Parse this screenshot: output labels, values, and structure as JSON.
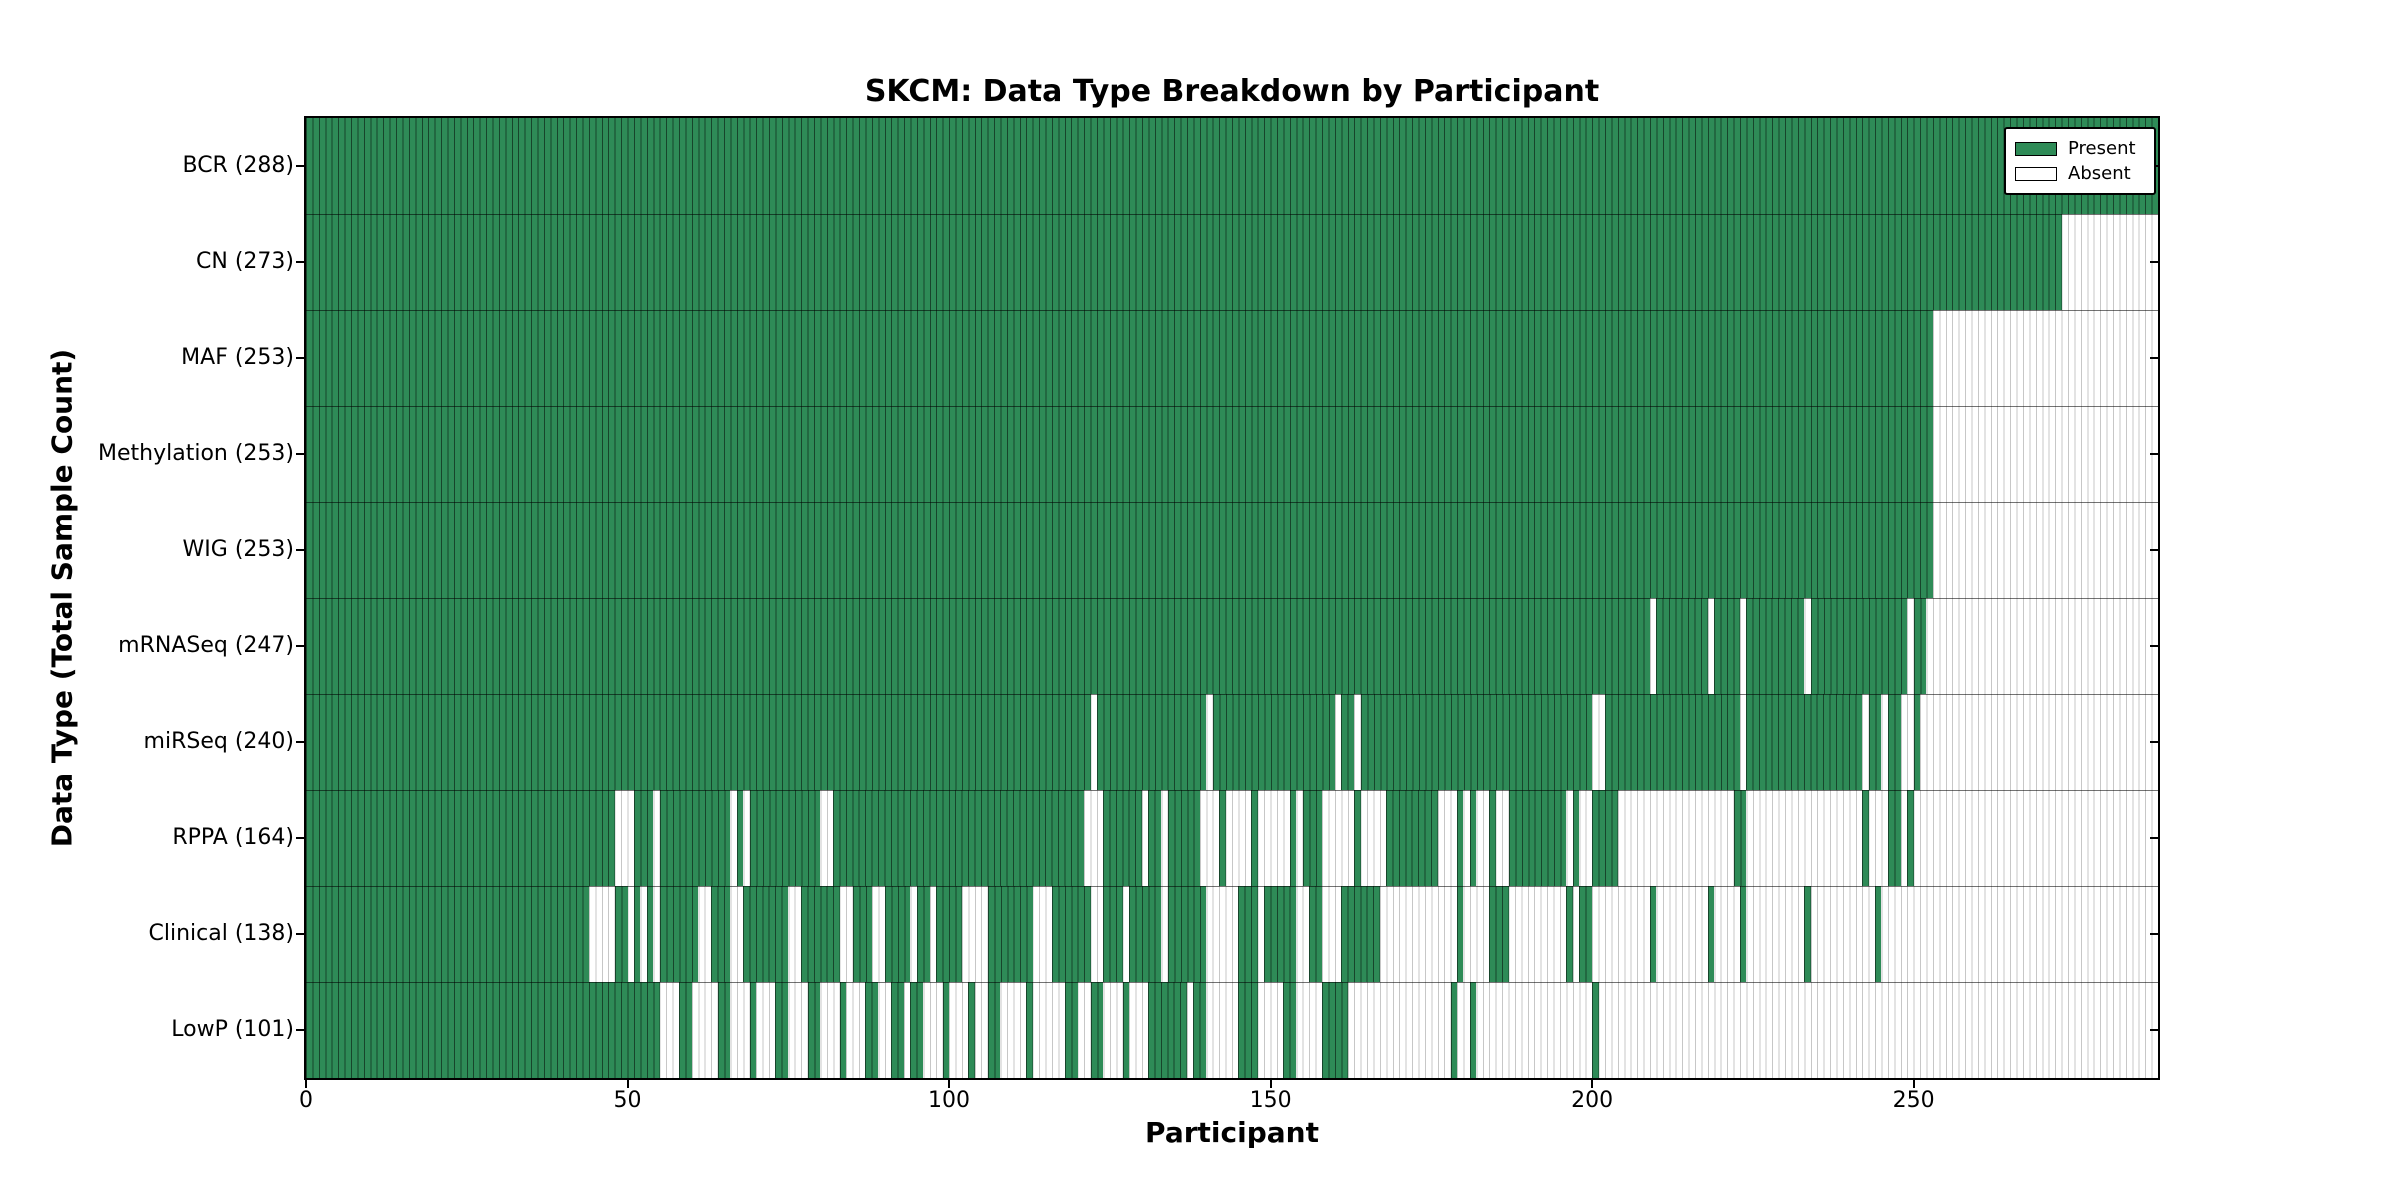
{
  "figure": {
    "background": "#FFFFFF"
  },
  "chart_data": {
    "type": "heatmap",
    "title": "SKCM: Data Type Breakdown by Participant",
    "xlabel": "Participant",
    "ylabel": "Data Type (Total Sample Count)",
    "x_ticks": [
      0,
      50,
      100,
      150,
      200,
      250
    ],
    "n_participants": 288,
    "x_range": [
      0,
      288
    ],
    "grid": true,
    "legend_position": "upper-right",
    "colors": {
      "present": "#2E8B57",
      "absent": "#FFFFFF",
      "axis": "#000000"
    },
    "legend": [
      {
        "label": "Present"
      },
      {
        "label": "Absent"
      }
    ],
    "rows": [
      {
        "label": "BCR",
        "total": 288,
        "present_ranges": [
          [
            0,
            288
          ]
        ]
      },
      {
        "label": "CN",
        "total": 273,
        "present_ranges": [
          [
            0,
            273
          ]
        ]
      },
      {
        "label": "MAF",
        "total": 253,
        "present_ranges": [
          [
            0,
            253
          ]
        ]
      },
      {
        "label": "Methylation",
        "total": 253,
        "present_ranges": [
          [
            0,
            253
          ]
        ]
      },
      {
        "label": "WIG",
        "total": 253,
        "present_ranges": [
          [
            0,
            253
          ]
        ]
      },
      {
        "label": "mRNASeq",
        "total": 247,
        "present_ranges": [
          [
            0,
            209
          ],
          [
            210,
            218
          ],
          [
            219,
            223
          ],
          [
            224,
            233
          ],
          [
            234,
            249
          ],
          [
            250,
            252
          ]
        ]
      },
      {
        "label": "miRSeq",
        "total": 240,
        "present_ranges": [
          [
            0,
            122
          ],
          [
            123,
            140
          ],
          [
            141,
            160
          ],
          [
            161,
            163
          ],
          [
            164,
            200
          ],
          [
            202,
            223
          ],
          [
            224,
            242
          ],
          [
            243,
            245
          ],
          [
            246,
            248
          ],
          [
            250,
            251
          ]
        ]
      },
      {
        "label": "RPPA",
        "total": 164,
        "present_ranges": [
          [
            0,
            48
          ],
          [
            51,
            54
          ],
          [
            55,
            66
          ],
          [
            67,
            68
          ],
          [
            69,
            80
          ],
          [
            82,
            121
          ],
          [
            124,
            130
          ],
          [
            131,
            133
          ],
          [
            134,
            139
          ],
          [
            142,
            143
          ],
          [
            147,
            148
          ],
          [
            153,
            154
          ],
          [
            155,
            158
          ],
          [
            163,
            164
          ],
          [
            168,
            176
          ],
          [
            179,
            180
          ],
          [
            181,
            182
          ],
          [
            184,
            185
          ],
          [
            187,
            196
          ],
          [
            197,
            198
          ],
          [
            200,
            204
          ],
          [
            222,
            224
          ],
          [
            242,
            243
          ],
          [
            246,
            248
          ],
          [
            249,
            250
          ]
        ]
      },
      {
        "label": "Clinical",
        "total": 138,
        "present_ranges": [
          [
            0,
            44
          ],
          [
            48,
            50
          ],
          [
            51,
            52
          ],
          [
            53,
            54
          ],
          [
            55,
            61
          ],
          [
            63,
            66
          ],
          [
            68,
            75
          ],
          [
            77,
            83
          ],
          [
            85,
            88
          ],
          [
            90,
            94
          ],
          [
            95,
            97
          ],
          [
            98,
            102
          ],
          [
            106,
            113
          ],
          [
            116,
            122
          ],
          [
            124,
            127
          ],
          [
            128,
            133
          ],
          [
            134,
            140
          ],
          [
            145,
            148
          ],
          [
            149,
            154
          ],
          [
            156,
            158
          ],
          [
            161,
            167
          ],
          [
            179,
            180
          ],
          [
            184,
            187
          ],
          [
            196,
            197
          ],
          [
            198,
            200
          ],
          [
            209,
            210
          ],
          [
            218,
            219
          ],
          [
            223,
            224
          ],
          [
            233,
            234
          ],
          [
            244,
            245
          ]
        ]
      },
      {
        "label": "LowP",
        "total": 101,
        "present_ranges": [
          [
            0,
            55
          ],
          [
            58,
            60
          ],
          [
            64,
            66
          ],
          [
            69,
            70
          ],
          [
            73,
            75
          ],
          [
            78,
            80
          ],
          [
            83,
            84
          ],
          [
            87,
            89
          ],
          [
            91,
            93
          ],
          [
            94,
            96
          ],
          [
            99,
            100
          ],
          [
            103,
            104
          ],
          [
            106,
            108
          ],
          [
            112,
            113
          ],
          [
            118,
            120
          ],
          [
            122,
            124
          ],
          [
            127,
            128
          ],
          [
            131,
            137
          ],
          [
            138,
            140
          ],
          [
            145,
            148
          ],
          [
            152,
            154
          ],
          [
            158,
            162
          ],
          [
            178,
            179
          ],
          [
            181,
            182
          ],
          [
            200,
            201
          ]
        ]
      }
    ]
  }
}
